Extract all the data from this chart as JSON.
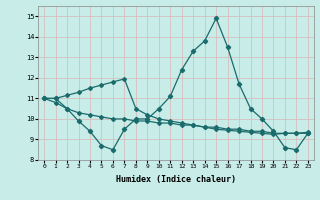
{
  "xlabel": "Humidex (Indice chaleur)",
  "xlim": [
    -0.5,
    23.5
  ],
  "ylim": [
    8,
    15.5
  ],
  "yticks": [
    8,
    9,
    10,
    11,
    12,
    13,
    14,
    15
  ],
  "xticks": [
    0,
    1,
    2,
    3,
    4,
    5,
    6,
    7,
    8,
    9,
    10,
    11,
    12,
    13,
    14,
    15,
    16,
    17,
    18,
    19,
    20,
    21,
    22,
    23
  ],
  "background_color": "#c8ece8",
  "grid_color": "#d9b8b8",
  "line_color": "#1a6b6b",
  "line1_x": [
    0,
    1,
    2,
    3,
    4,
    5,
    6,
    7,
    8,
    9,
    10,
    11,
    12,
    13,
    14,
    15,
    16,
    17,
    18,
    19,
    20,
    21,
    22,
    23
  ],
  "line1_y": [
    11.0,
    11.0,
    10.5,
    9.9,
    9.4,
    8.7,
    8.5,
    9.5,
    10.0,
    10.0,
    10.5,
    11.1,
    12.4,
    13.3,
    13.8,
    14.9,
    13.5,
    11.7,
    10.5,
    10.0,
    9.4,
    8.6,
    8.5,
    9.3
  ],
  "line2_x": [
    0,
    1,
    2,
    3,
    4,
    5,
    6,
    7,
    8,
    9,
    10,
    11,
    12,
    13,
    14,
    15,
    16,
    17,
    18,
    19,
    20,
    21,
    22,
    23
  ],
  "line2_y": [
    11.0,
    10.8,
    10.5,
    10.3,
    10.2,
    10.1,
    10.0,
    10.0,
    9.9,
    9.9,
    9.8,
    9.8,
    9.7,
    9.7,
    9.6,
    9.6,
    9.5,
    9.5,
    9.4,
    9.4,
    9.3,
    9.3,
    9.3,
    9.3
  ],
  "line3_x": [
    0,
    1,
    2,
    3,
    4,
    5,
    6,
    7,
    8,
    9,
    10,
    11,
    12,
    13,
    14,
    15,
    16,
    17,
    18,
    19,
    20,
    21,
    22,
    23
  ],
  "line3_y": [
    11.0,
    11.0,
    11.15,
    11.3,
    11.5,
    11.65,
    11.8,
    11.95,
    10.5,
    10.2,
    10.0,
    9.9,
    9.8,
    9.7,
    9.6,
    9.5,
    9.45,
    9.4,
    9.35,
    9.3,
    9.25,
    9.3,
    9.3,
    9.35
  ]
}
